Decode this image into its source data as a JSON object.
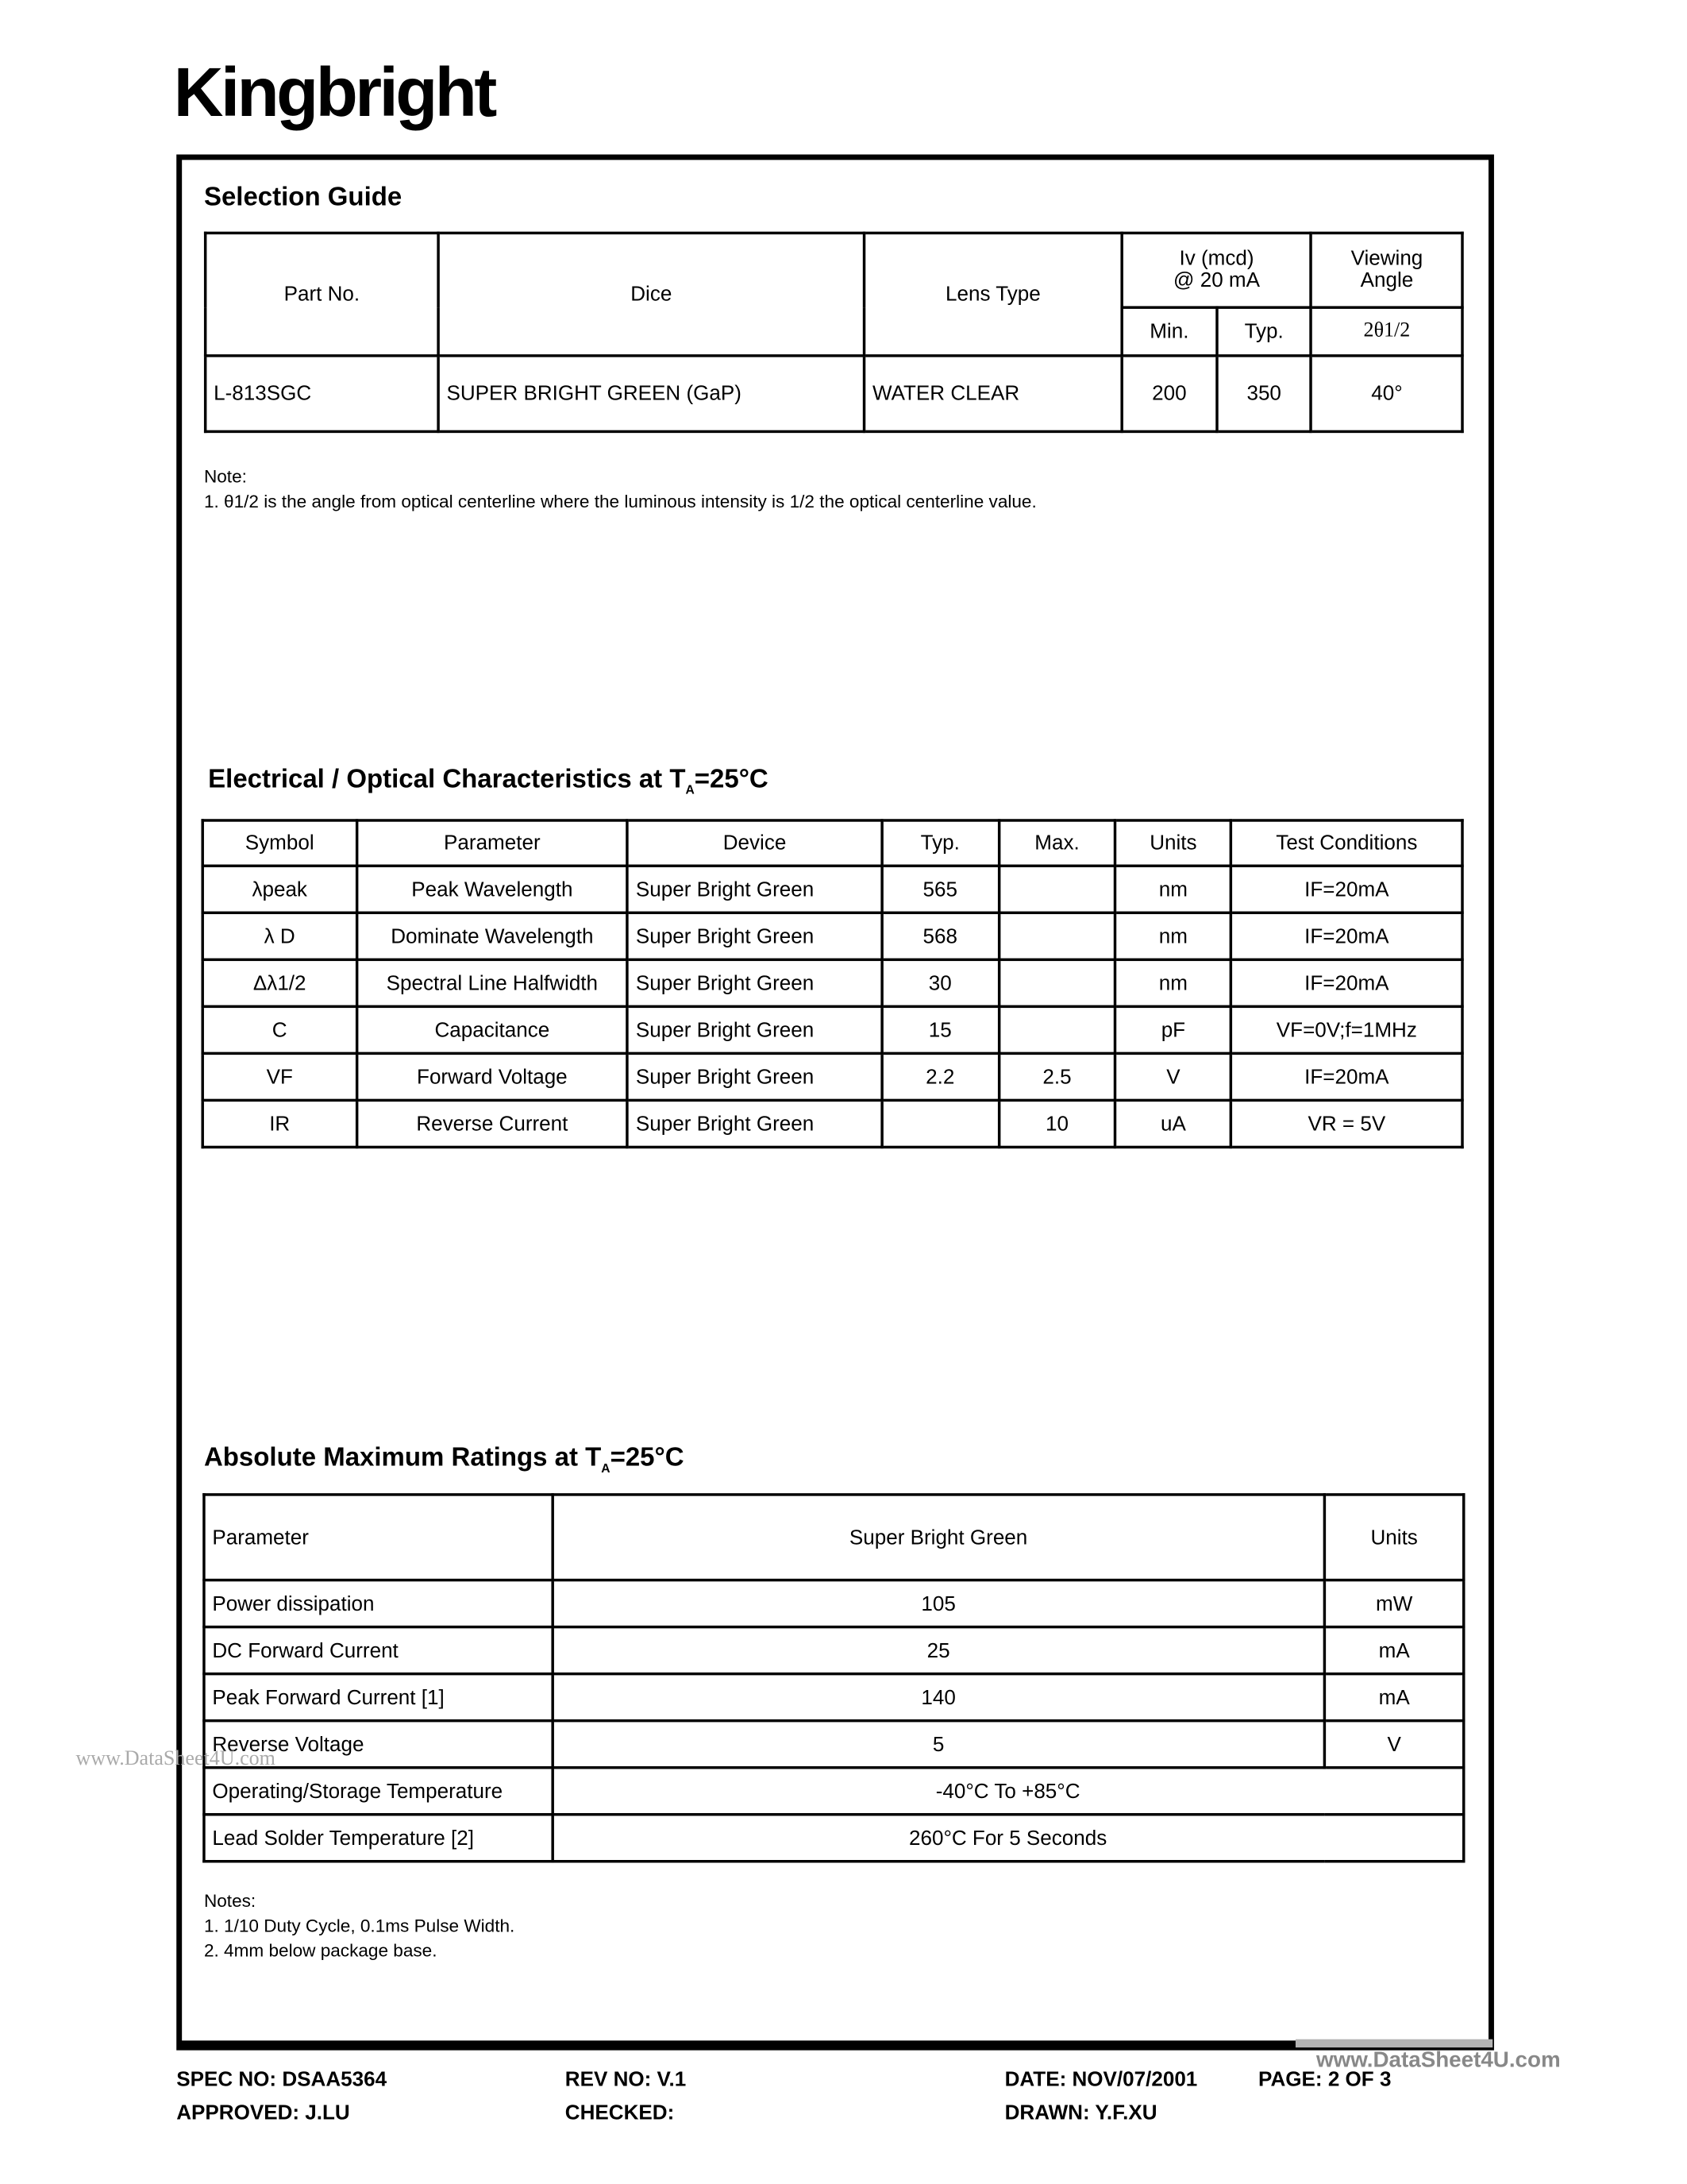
{
  "logo": "Kingbright",
  "selection": {
    "title": "Selection Guide",
    "headers": {
      "part": "Part No.",
      "dice": "Dice",
      "lens": "Lens Type",
      "iv": "Iv (mcd)",
      "iv2": "@ 20 mA",
      "view": "Viewing",
      "view2": "Angle",
      "min": "Min.",
      "typ": "Typ.",
      "theta": "2θ1/2"
    },
    "row": {
      "part": "L-813SGC",
      "dice": "SUPER BRIGHT GREEN (GaP)",
      "lens": "WATER CLEAR",
      "min": "200",
      "typ": "350",
      "angle": "40°"
    },
    "note_label": "Note:",
    "note1": "1. θ1/2 is the angle from optical centerline where the luminous intensity is 1/2 the optical centerline value."
  },
  "electrical": {
    "title": "Electrical / Optical Characteristics at T",
    "title_sub": "A",
    "title_end": "=25°C",
    "headers": [
      "Symbol",
      "Parameter",
      "Device",
      "Typ.",
      "Max.",
      "Units",
      "Test Conditions"
    ],
    "rows": [
      [
        "λpeak",
        "Peak Wavelength",
        "Super Bright Green",
        "565",
        "",
        "nm",
        "IF=20mA"
      ],
      [
        "λ D",
        "Dominate Wavelength",
        "Super Bright Green",
        "568",
        "",
        "nm",
        "IF=20mA"
      ],
      [
        "Δλ1/2",
        "Spectral Line  Halfwidth",
        "Super Bright Green",
        "30",
        "",
        "nm",
        "IF=20mA"
      ],
      [
        "C",
        "Capacitance",
        "Super Bright Green",
        "15",
        "",
        "pF",
        "VF=0V;f=1MHz"
      ],
      [
        "VF",
        "Forward Voltage",
        "Super Bright Green",
        "2.2",
        "2.5",
        "V",
        "IF=20mA"
      ],
      [
        "IR",
        "Reverse Current",
        "Super Bright Green",
        "",
        "10",
        "uA",
        "VR = 5V"
      ]
    ]
  },
  "absolute": {
    "title": "Absolute Maximum Ratings at T",
    "title_sub": "A",
    "title_end": "=25°C",
    "headers": [
      "Parameter",
      "Super Bright Green",
      "Units"
    ],
    "rows": [
      [
        "Power dissipation",
        "105",
        "mW"
      ],
      [
        "DC Forward Current",
        "25",
        "mA"
      ],
      [
        "Peak Forward Current [1]",
        "140",
        "mA"
      ],
      [
        "Reverse Voltage",
        "5",
        "V"
      ]
    ],
    "span_rows": [
      [
        "Operating/Storage Temperature",
        "-40°C To +85°C"
      ],
      [
        "Lead Solder Temperature [2]",
        "260°C For 5 Seconds"
      ]
    ],
    "notes": [
      "Notes:",
      "1. 1/10 Duty Cycle, 0.1ms Pulse Width.",
      "2. 4mm below package base."
    ]
  },
  "watermark": "www.DataSheet4U.com",
  "footer": {
    "spec": "SPEC NO: DSAA5364",
    "rev": "REV NO: V.1",
    "date": "DATE: NOV/07/2001",
    "page": "PAGE:  2 OF 3",
    "approved": "APPROVED: J.LU",
    "checked": "CHECKED:",
    "drawn": "DRAWN: Y.F.XU"
  }
}
